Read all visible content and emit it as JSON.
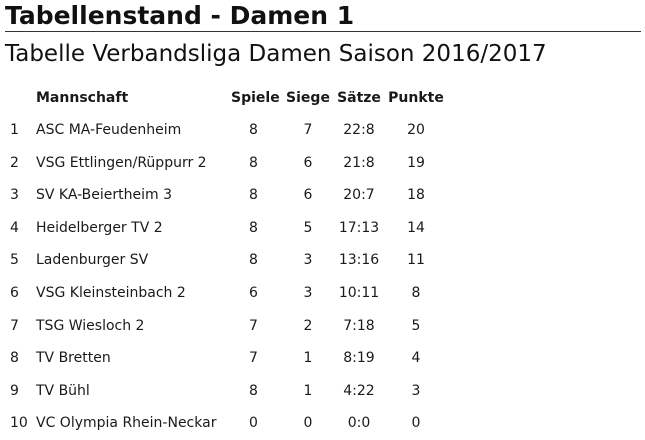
{
  "page": {
    "title": "Tabellenstand - Damen 1"
  },
  "table": {
    "title": "Tabelle Verbandsliga Damen Saison 2016/2017",
    "headers": {
      "rank": "",
      "team": "Mannschaft",
      "games": "Spiele",
      "wins": "Siege",
      "sets": "Sätze",
      "points": "Punkte"
    },
    "rows": [
      {
        "rank": "1",
        "team": "ASC MA-Feudenheim",
        "games": "8",
        "wins": "7",
        "sets": "22:8",
        "points": "20"
      },
      {
        "rank": "2",
        "team": "VSG Ettlingen/Rüppurr 2",
        "games": "8",
        "wins": "6",
        "sets": "21:8",
        "points": "19"
      },
      {
        "rank": "3",
        "team": "SV KA-Beiertheim 3",
        "games": "8",
        "wins": "6",
        "sets": "20:7",
        "points": "18"
      },
      {
        "rank": "4",
        "team": "Heidelberger TV 2",
        "games": "8",
        "wins": "5",
        "sets": "17:13",
        "points": "14"
      },
      {
        "rank": "5",
        "team": "Ladenburger SV",
        "games": "8",
        "wins": "3",
        "sets": "13:16",
        "points": "11"
      },
      {
        "rank": "6",
        "team": "VSG Kleinsteinbach 2",
        "games": "6",
        "wins": "3",
        "sets": "10:11",
        "points": "8"
      },
      {
        "rank": "7",
        "team": "TSG Wiesloch 2",
        "games": "7",
        "wins": "2",
        "sets": "7:18",
        "points": "5"
      },
      {
        "rank": "8",
        "team": "TV Bretten",
        "games": "7",
        "wins": "1",
        "sets": "8:19",
        "points": "4"
      },
      {
        "rank": "9",
        "team": "TV Bühl",
        "games": "8",
        "wins": "1",
        "sets": "4:22",
        "points": "3"
      },
      {
        "rank": "10",
        "team": "VC Olympia Rhein-Neckar",
        "games": "0",
        "wins": "0",
        "sets": "0:0",
        "points": "0"
      }
    ]
  }
}
